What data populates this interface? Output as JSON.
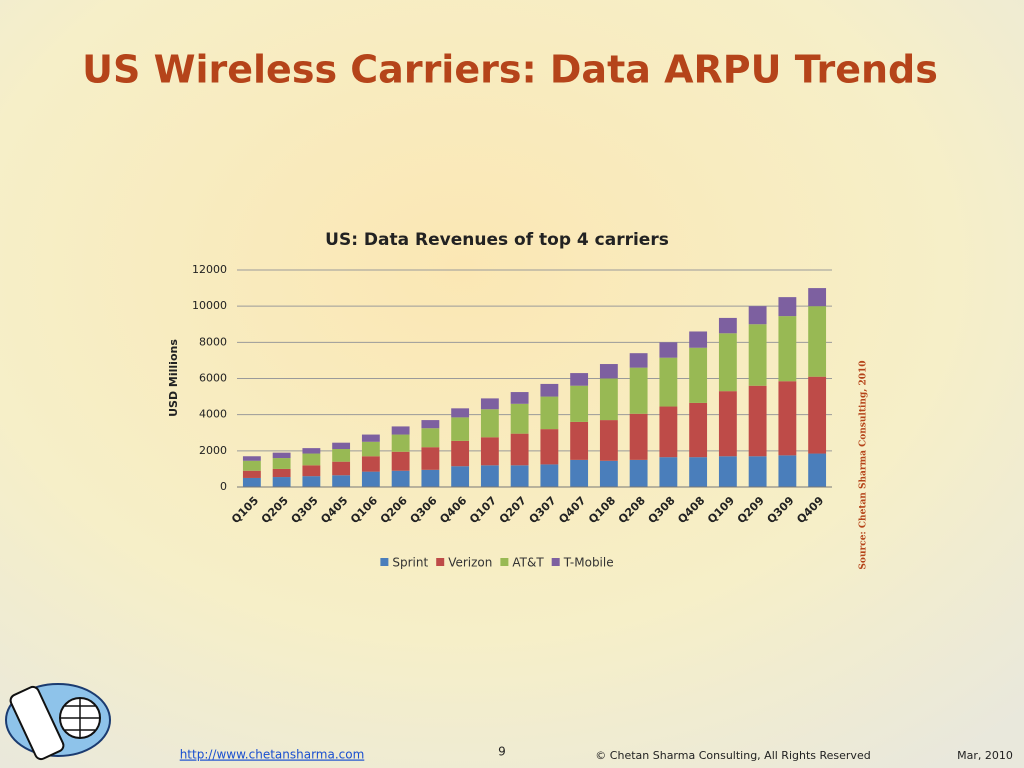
{
  "slide": {
    "title": "US Wireless Carriers: Data ARPU Trends",
    "footer_link": "http://www.chetansharma.com",
    "page_number": "9",
    "copyright": "© Chetan Sharma Consulting, All Rights Reserved",
    "date": "Mar, 2010"
  },
  "chart_data": {
    "type": "stacked_bar",
    "title": "US: Data Revenues of top 4 carriers",
    "y_label": "USD Millions",
    "source": "Source: Chetan Sharma Consulting, 2010",
    "categories": [
      "Q105",
      "Q205",
      "Q305",
      "Q405",
      "Q106",
      "Q206",
      "Q306",
      "Q406",
      "Q107",
      "Q207",
      "Q307",
      "Q407",
      "Q108",
      "Q208",
      "Q308",
      "Q408",
      "Q109",
      "Q209",
      "Q309",
      "Q409"
    ],
    "series": [
      {
        "name": "Sprint",
        "color": "#4a7ebb",
        "values": [
          500,
          550,
          600,
          650,
          850,
          900,
          950,
          1150,
          1200,
          1200,
          1250,
          1500,
          1450,
          1500,
          1650,
          1650,
          1700,
          1700,
          1750,
          1850
        ]
      },
      {
        "name": "Verizon",
        "color": "#be4b48",
        "values": [
          400,
          450,
          600,
          750,
          850,
          1050,
          1250,
          1400,
          1550,
          1750,
          1950,
          2100,
          2250,
          2550,
          2800,
          3000,
          3600,
          3900,
          4100,
          4250
        ]
      },
      {
        "name": "AT&T",
        "color": "#98b954",
        "values": [
          550,
          600,
          650,
          700,
          800,
          950,
          1050,
          1300,
          1550,
          1650,
          1800,
          2000,
          2300,
          2550,
          2700,
          3050,
          3200,
          3400,
          3600,
          3900
        ]
      },
      {
        "name": "T-Mobile",
        "color": "#7d60a0",
        "values": [
          250,
          300,
          300,
          350,
          400,
          450,
          450,
          500,
          600,
          650,
          700,
          700,
          800,
          800,
          850,
          900,
          850,
          1000,
          1050,
          1000
        ]
      }
    ],
    "ylim": [
      0,
      12000
    ],
    "yticks": [
      0,
      2000,
      4000,
      6000,
      8000,
      10000,
      12000
    ],
    "grid": true,
    "legend": "bottom"
  }
}
